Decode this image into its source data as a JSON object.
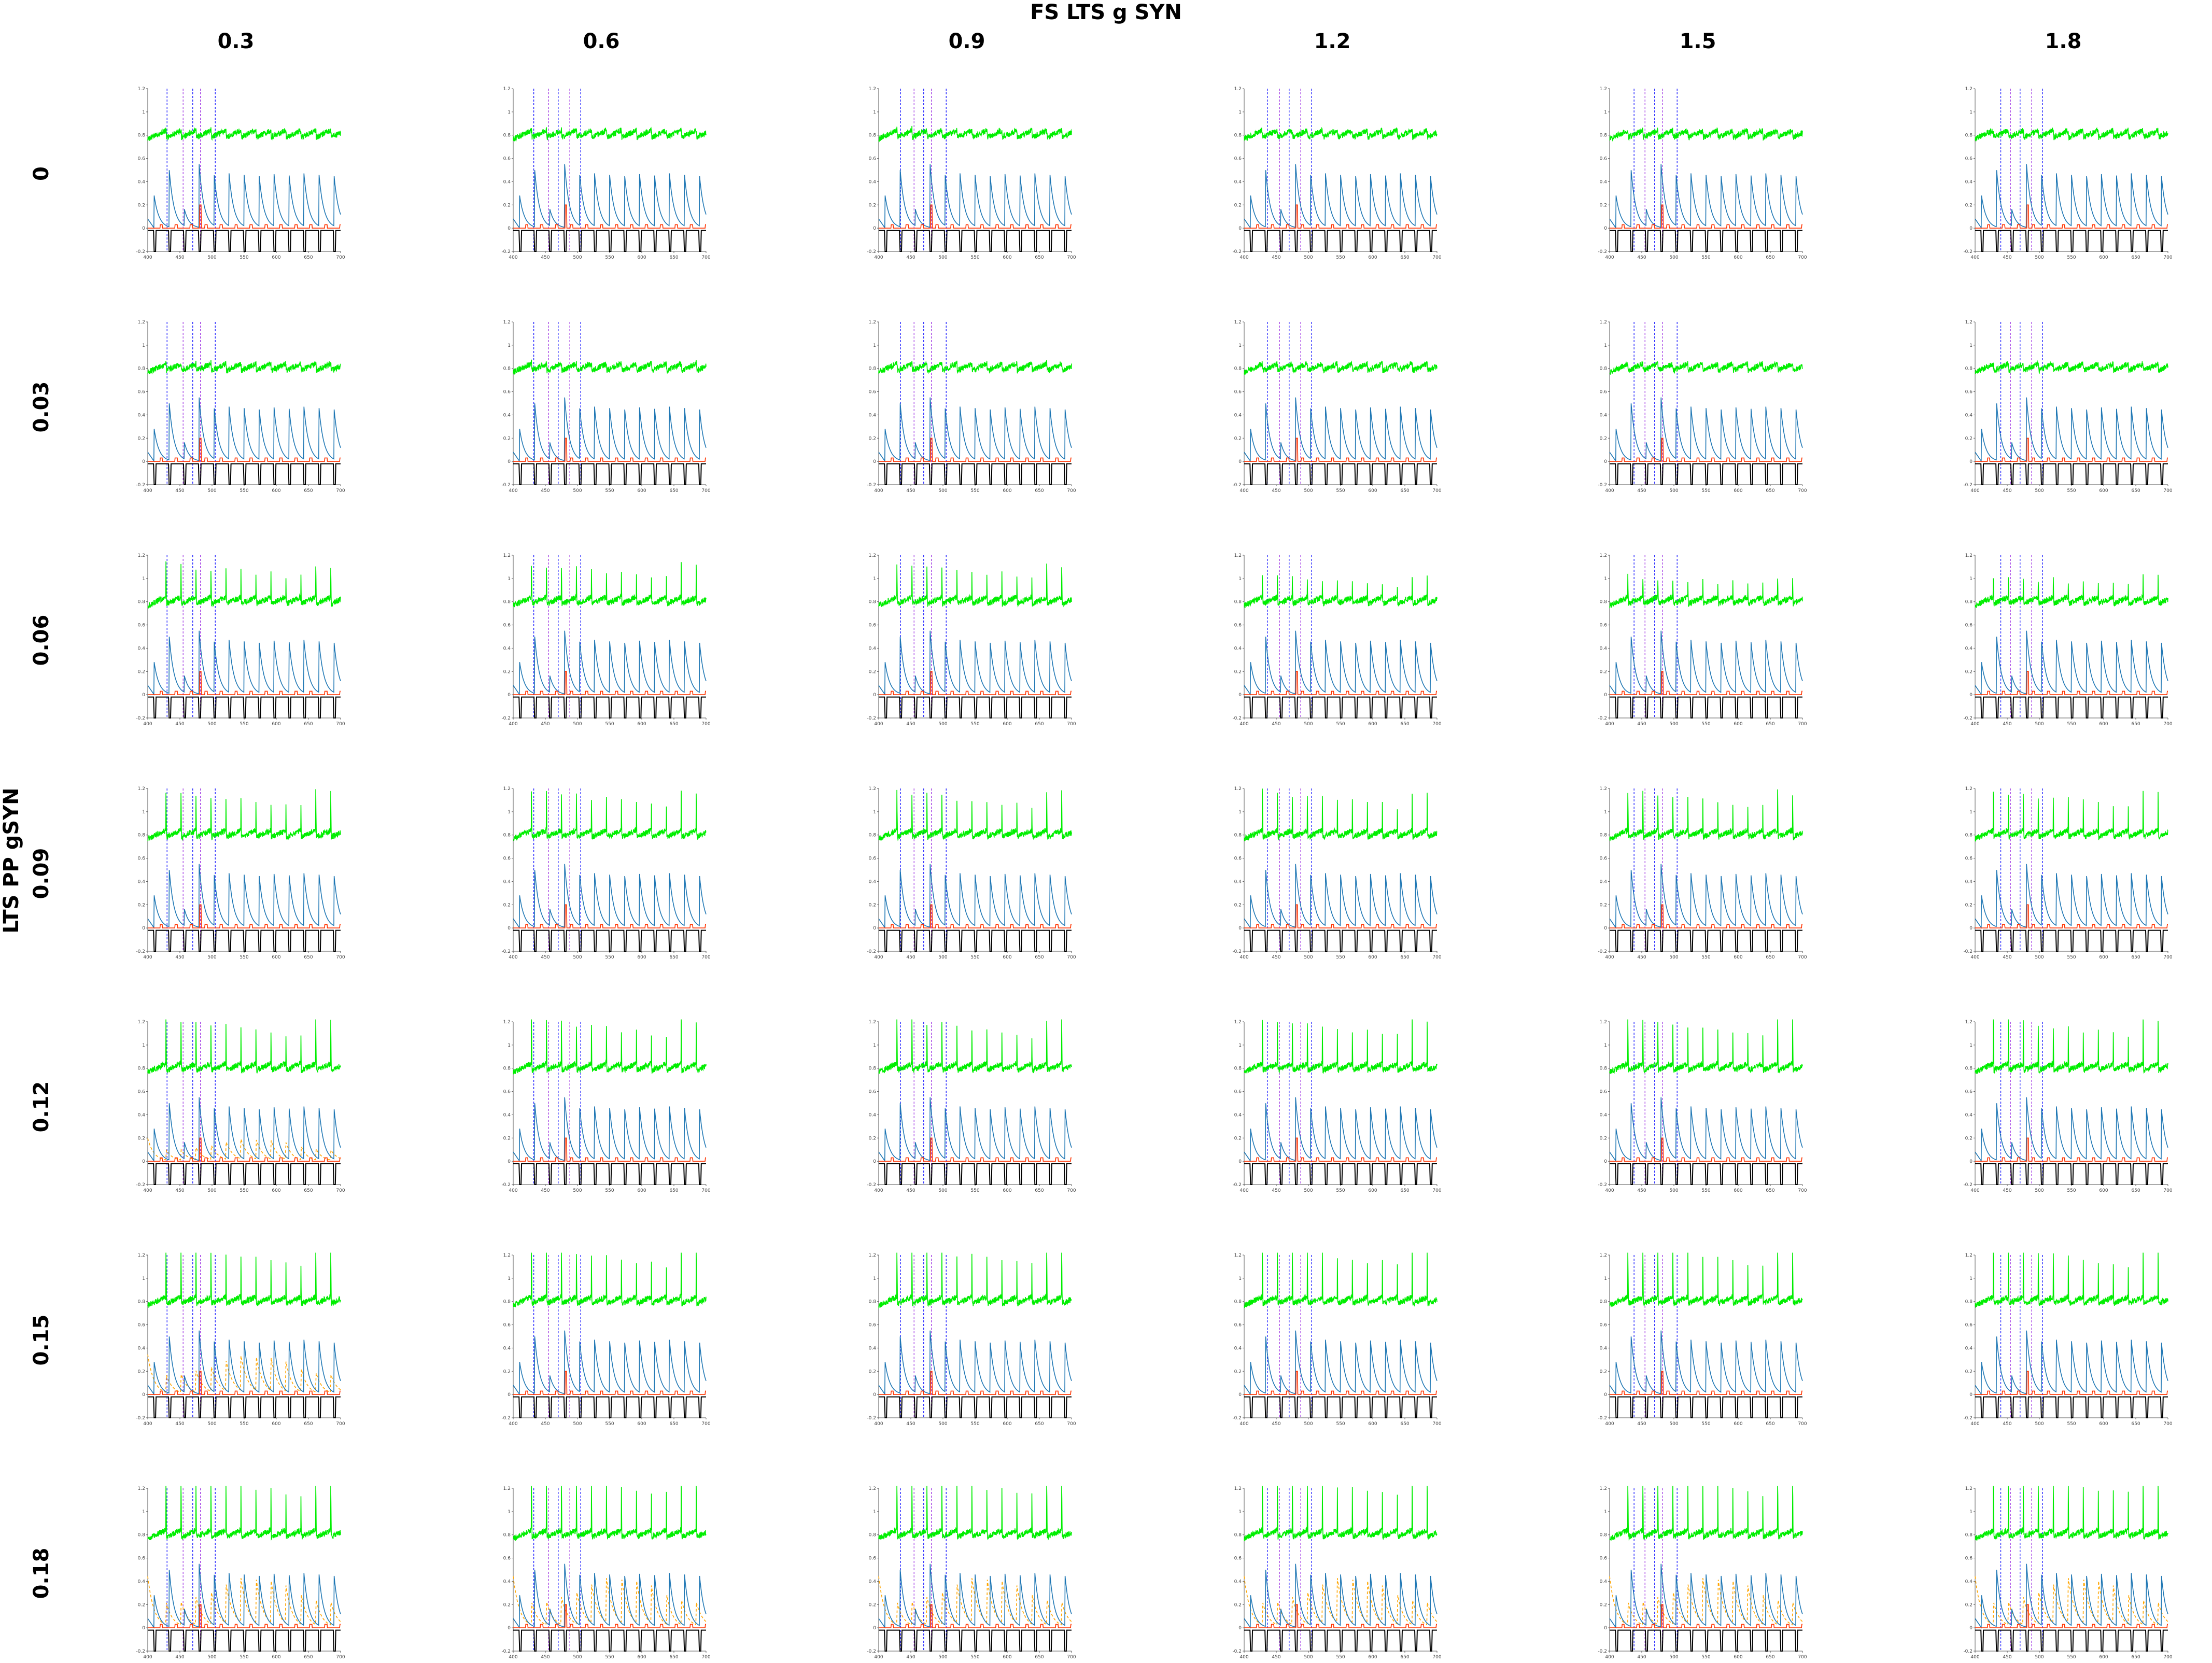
{
  "chart_data": {
    "type": "grid_of_line_plots",
    "title": "FS LTS g SYN",
    "xlabel": "FS LTS g SYN",
    "ylabel": "LTS PP gSYN",
    "column_values": [
      "0.3",
      "0.6",
      "0.9",
      "1.2",
      "1.5",
      "1.8"
    ],
    "row_values": [
      "0",
      "0.03",
      "0.06",
      "0.09",
      "0.12",
      "0.15",
      "0.18"
    ],
    "panel": {
      "xlim": [
        400,
        700
      ],
      "x_ticks": [
        "400",
        "450",
        "500",
        "550",
        "600",
        "650",
        "700"
      ],
      "ylim": [
        -0.2,
        1.2
      ],
      "y_ticks": [
        "-0.2",
        "0",
        "0.2",
        "0.4",
        "0.6",
        "0.8",
        "1",
        "1.2"
      ],
      "series": [
        {
          "name": "green trace",
          "color": "#00ee00",
          "baseline": 0.8
        },
        {
          "name": "blue trace",
          "color": "#1f77b4",
          "peak": 0.55
        },
        {
          "name": "orange dashed trace",
          "color": "#ffa500"
        },
        {
          "name": "red trace",
          "color": "#ff3300"
        },
        {
          "name": "black trace",
          "color": "#000000"
        }
      ],
      "event_lines": [
        {
          "color": "#0000ff",
          "style": "dashed"
        },
        {
          "color": "#9a2be2",
          "style": "dashed"
        }
      ]
    }
  },
  "colors": {
    "green": "#00ee00",
    "blue": "#1f77b4",
    "orange": "#ffa500",
    "red": "#ff3300",
    "black": "#000000",
    "event_blue": "#0000ff",
    "event_purple": "#9a2be2"
  }
}
